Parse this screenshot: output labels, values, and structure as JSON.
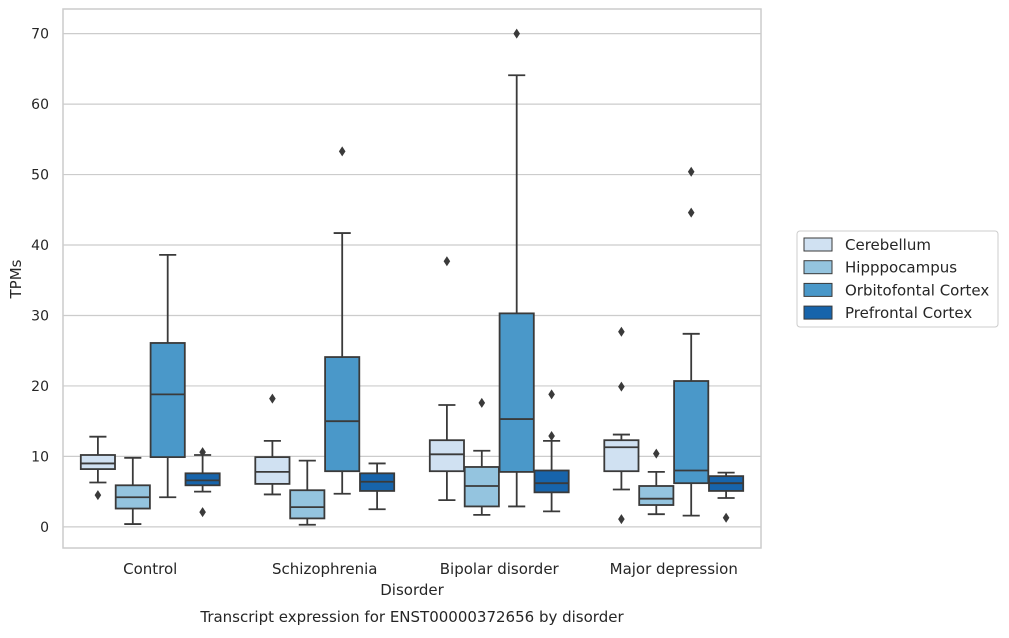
{
  "chart_data": {
    "type": "box",
    "title": "",
    "caption": "Transcript expression for ENST00000372656 by disorder",
    "xlabel": "Disorder",
    "ylabel": "TPMs",
    "ylim": [
      -3,
      73.5
    ],
    "yticks": [
      0,
      10,
      20,
      30,
      40,
      50,
      60,
      70
    ],
    "grid": "horizontal",
    "legend_position": "right",
    "categories": [
      "Control",
      "Schizophrenia",
      "Bipolar disorder",
      "Major depression"
    ],
    "series": [
      {
        "name": "Cerebellum",
        "color": "#d0e1f2",
        "boxes": [
          {
            "whisker_low": 6.3,
            "q1": 8.2,
            "median": 9.0,
            "q3": 10.2,
            "whisker_high": 12.8,
            "outliers": [
              4.5
            ]
          },
          {
            "whisker_low": 4.6,
            "q1": 6.1,
            "median": 7.8,
            "q3": 9.9,
            "whisker_high": 12.2,
            "outliers": [
              18.2
            ]
          },
          {
            "whisker_low": 3.8,
            "q1": 7.9,
            "median": 10.3,
            "q3": 12.3,
            "whisker_high": 17.3,
            "outliers": [
              37.7
            ]
          },
          {
            "whisker_low": 5.3,
            "q1": 7.9,
            "median": 11.3,
            "q3": 12.3,
            "whisker_high": 13.1,
            "outliers": [
              27.7,
              19.9,
              1.1
            ]
          }
        ]
      },
      {
        "name": "Hipppocampus",
        "color": "#94c4df",
        "boxes": [
          {
            "whisker_low": 0.4,
            "q1": 2.6,
            "median": 4.2,
            "q3": 5.9,
            "whisker_high": 9.8,
            "outliers": []
          },
          {
            "whisker_low": 0.3,
            "q1": 1.2,
            "median": 2.8,
            "q3": 5.2,
            "whisker_high": 9.4,
            "outliers": []
          },
          {
            "whisker_low": 1.7,
            "q1": 2.9,
            "median": 5.8,
            "q3": 8.5,
            "whisker_high": 10.8,
            "outliers": [
              17.6
            ]
          },
          {
            "whisker_low": 1.8,
            "q1": 3.1,
            "median": 4.0,
            "q3": 5.8,
            "whisker_high": 7.8,
            "outliers": [
              10.4
            ]
          }
        ]
      },
      {
        "name": "Orbitofontal Cortex",
        "color": "#4a98c9",
        "boxes": [
          {
            "whisker_low": 4.2,
            "q1": 9.9,
            "median": 18.8,
            "q3": 26.1,
            "whisker_high": 38.6,
            "outliers": []
          },
          {
            "whisker_low": 4.7,
            "q1": 7.9,
            "median": 15.0,
            "q3": 24.1,
            "whisker_high": 41.7,
            "outliers": [
              53.3
            ]
          },
          {
            "whisker_low": 2.9,
            "q1": 7.8,
            "median": 15.3,
            "q3": 30.3,
            "whisker_high": 64.1,
            "outliers": [
              70.0
            ]
          },
          {
            "whisker_low": 1.6,
            "q1": 6.2,
            "median": 8.0,
            "q3": 20.7,
            "whisker_high": 27.4,
            "outliers": [
              50.4,
              44.6
            ]
          }
        ]
      },
      {
        "name": "Prefrontal Cortex",
        "color": "#1764ab",
        "boxes": [
          {
            "whisker_low": 5.0,
            "q1": 5.9,
            "median": 6.6,
            "q3": 7.6,
            "whisker_high": 10.2,
            "outliers": [
              10.6,
              2.1
            ]
          },
          {
            "whisker_low": 2.5,
            "q1": 5.1,
            "median": 6.4,
            "q3": 7.6,
            "whisker_high": 9.0,
            "outliers": []
          },
          {
            "whisker_low": 2.2,
            "q1": 4.9,
            "median": 6.2,
            "q3": 8.0,
            "whisker_high": 12.2,
            "outliers": [
              18.8,
              12.9
            ]
          },
          {
            "whisker_low": 4.1,
            "q1": 5.1,
            "median": 6.2,
            "q3": 7.2,
            "whisker_high": 7.7,
            "outliers": [
              1.3
            ]
          }
        ]
      }
    ]
  }
}
